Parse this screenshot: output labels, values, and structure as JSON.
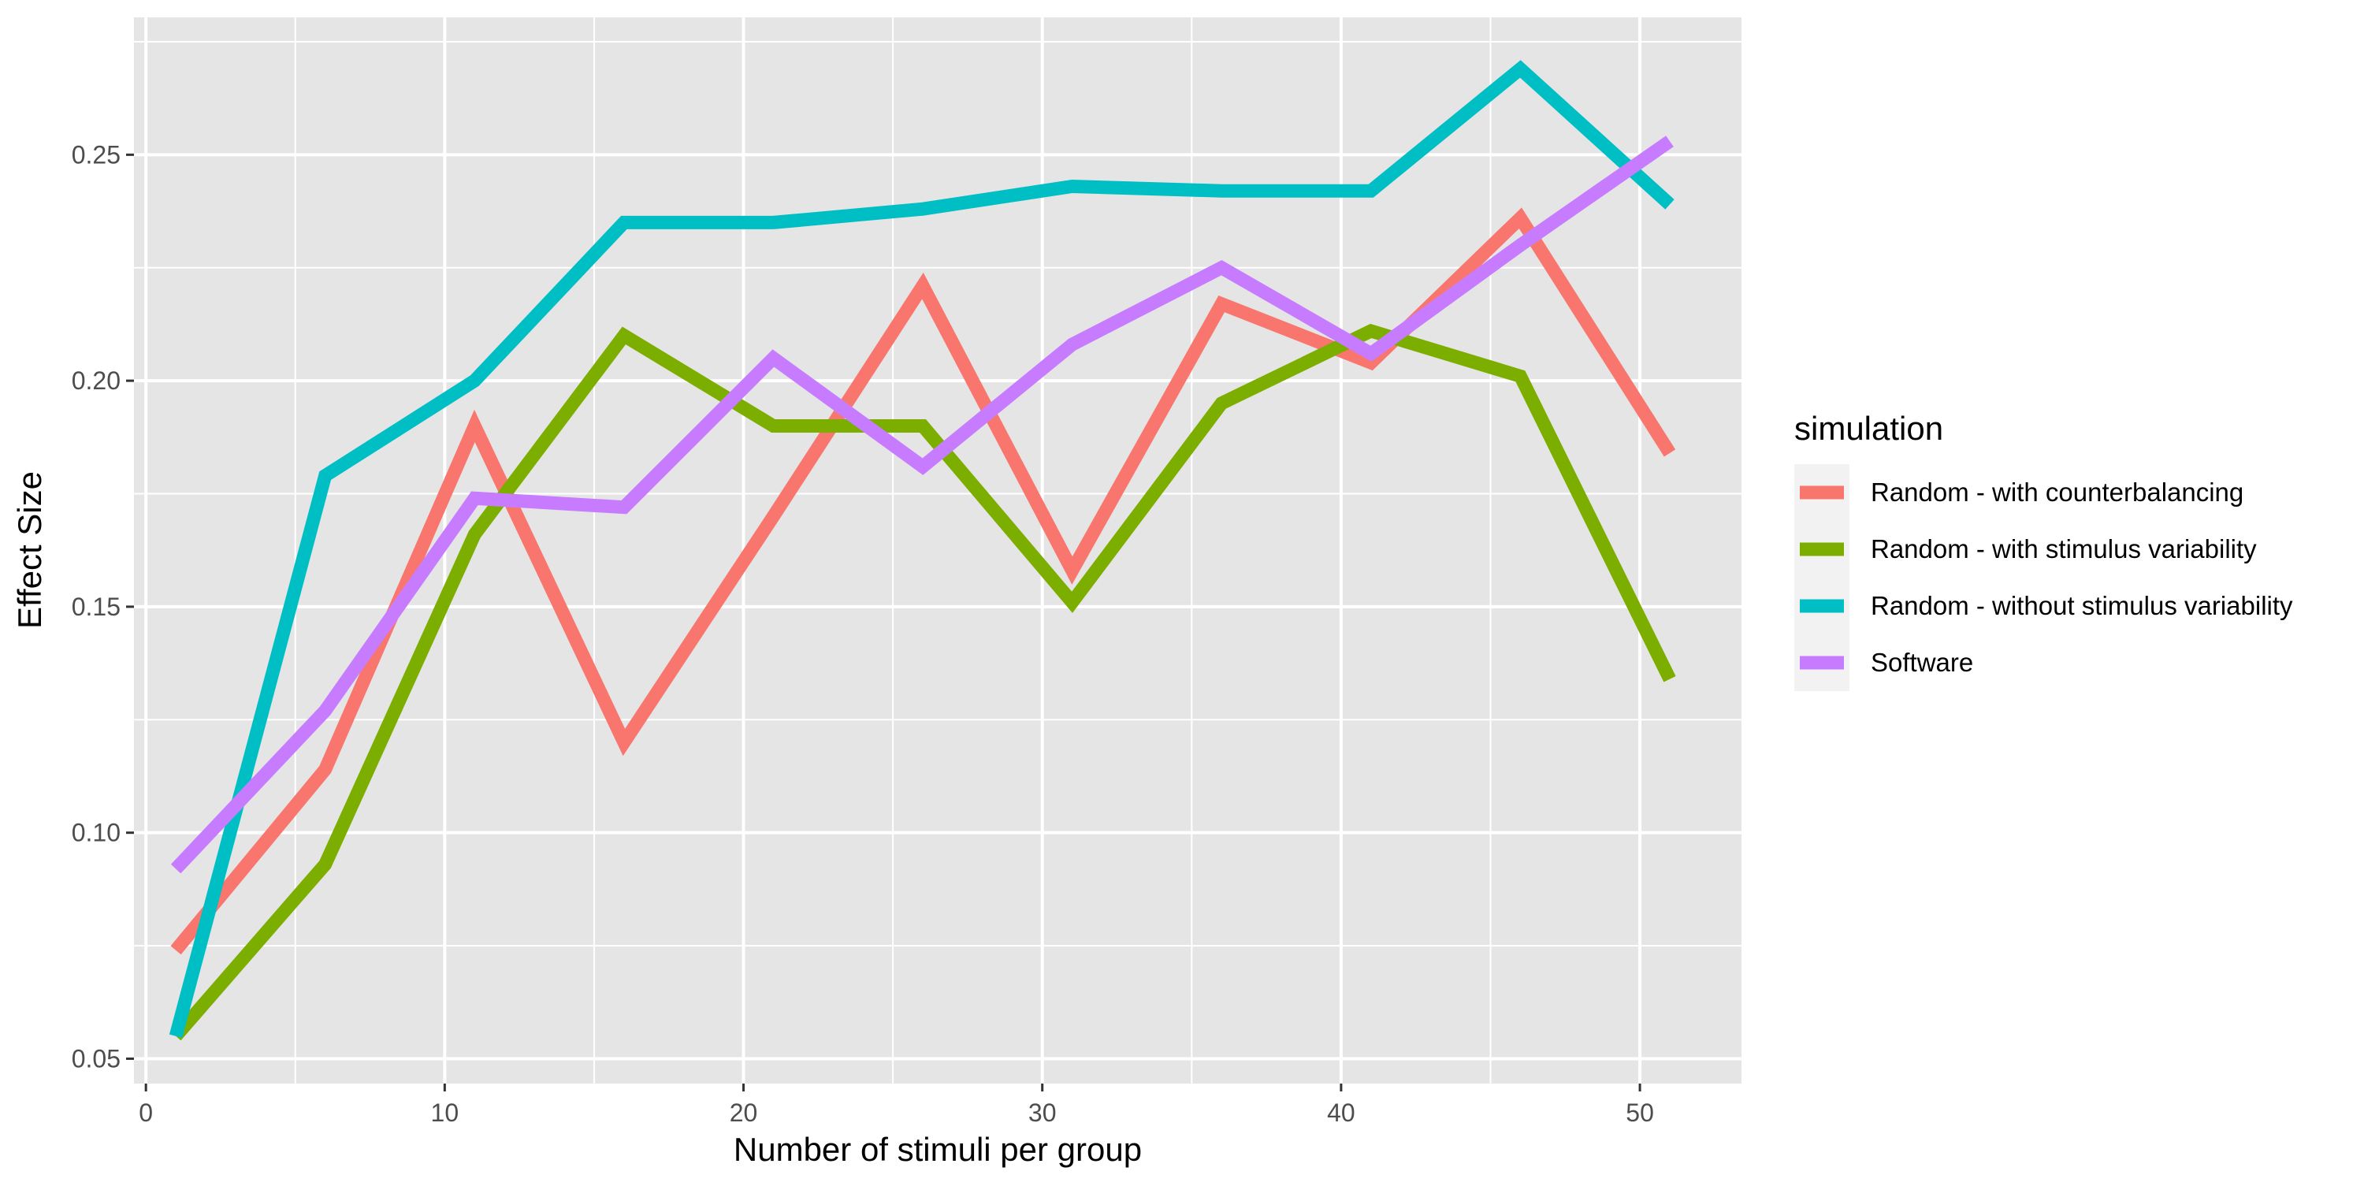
{
  "chart_data": {
    "type": "line",
    "title": "",
    "xlabel": "Number of stimuli per group",
    "ylabel": "Effect Size",
    "xlim": [
      -0.4,
      53.4
    ],
    "ylim": [
      0.0445,
      0.2804
    ],
    "x_ticks": [
      0,
      10,
      20,
      30,
      40,
      50
    ],
    "x_tick_labels": [
      "0",
      "10",
      "20",
      "30",
      "40",
      "50"
    ],
    "x_minor_ticks": [
      5,
      15,
      25,
      35,
      45
    ],
    "y_ticks": [
      0.05,
      0.1,
      0.15,
      0.2,
      0.25
    ],
    "y_tick_labels": [
      "0.05",
      "0.10",
      "0.15",
      "0.20",
      "0.25"
    ],
    "y_minor_ticks": [
      0.075,
      0.125,
      0.175,
      0.225,
      0.275
    ],
    "grid": true,
    "legend_position": "right",
    "legend_title": "simulation",
    "x": [
      1,
      6,
      11,
      16,
      21,
      26,
      31,
      36,
      41,
      46,
      51
    ],
    "series": [
      {
        "name": "Random - with counterbalancing",
        "color": "#F8766D",
        "values": [
          0.074,
          0.114,
          0.19,
          0.12,
          0.17,
          0.221,
          0.158,
          0.217,
          0.204,
          0.236,
          0.184
        ]
      },
      {
        "name": "Random - with stimulus variability",
        "color": "#7CAE00",
        "values": [
          0.055,
          0.093,
          0.166,
          0.21,
          0.19,
          0.19,
          0.151,
          0.195,
          0.211,
          0.201,
          0.134
        ]
      },
      {
        "name": "Random - without stimulus variability",
        "color": "#00BFC4",
        "values": [
          0.055,
          0.179,
          0.2,
          0.235,
          0.235,
          0.238,
          0.243,
          0.242,
          0.242,
          0.269,
          0.239
        ]
      },
      {
        "name": "Software",
        "color": "#C77CFF",
        "values": [
          0.092,
          0.127,
          0.174,
          0.172,
          0.205,
          0.181,
          0.208,
          0.225,
          0.206,
          0.23,
          0.253
        ]
      }
    ]
  },
  "style": {
    "panel_background": "#E5E5E5",
    "grid_color": "#FFFFFF",
    "legend_key_background": "#F2F2F2",
    "tick_color": "#333333"
  }
}
